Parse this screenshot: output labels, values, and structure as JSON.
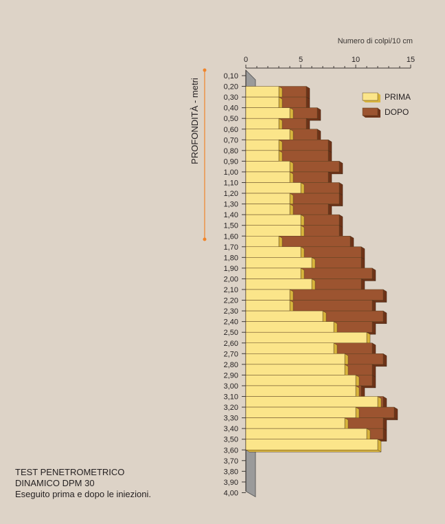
{
  "caption": {
    "line1": "TEST PENETROMETRICO",
    "line2": "DINAMICO DPM 30",
    "line3": "Eseguito prima e dopo le iniezioni."
  },
  "colors": {
    "background": "#ddd3c7",
    "prima_face": "#fbe58a",
    "prima_side": "#d8b43c",
    "dopo_face": "#9c5430",
    "dopo_side": "#6e3318",
    "axis_accent": "#f0842a",
    "probe": "#9a9a9a"
  },
  "chart_data": {
    "type": "bar",
    "orientation": "horizontal",
    "title": "",
    "xlabel": "Numero di colpi/10 cm",
    "ylabel": "PROFONDITÀ - metri",
    "xlim": [
      0,
      15
    ],
    "x_ticks": [
      "0",
      "5",
      "10",
      "15"
    ],
    "grid": false,
    "legend_position": "top-right",
    "depth_labels": [
      "0,10",
      "0,20",
      "0,30",
      "0,40",
      "0,50",
      "0,60",
      "0,70",
      "0,80",
      "0,90",
      "1,00",
      "1,10",
      "1,20",
      "1,30",
      "1,40",
      "1,50",
      "1,60",
      "1,70",
      "1,80",
      "1,90",
      "2,00",
      "2,10",
      "2,20",
      "2,30",
      "2,40",
      "2,50",
      "2,60",
      "2,70",
      "2,80",
      "2,90",
      "3,00",
      "3,10",
      "3,20",
      "3,30",
      "3,40",
      "3,50",
      "3,60",
      "3,70",
      "3,80",
      "3,90",
      "4,00"
    ],
    "categories": [
      "0,20",
      "0,30",
      "0,40",
      "0,50",
      "0,60",
      "0,70",
      "0,80",
      "0,90",
      "1,00",
      "1,10",
      "1,20",
      "1,30",
      "1,40",
      "1,50",
      "1,60",
      "1,70",
      "1,80",
      "1,90",
      "2,00",
      "2,10",
      "2,20",
      "2,30",
      "2,40",
      "2,50",
      "2,60",
      "2,70",
      "2,80",
      "2,90",
      "3,00",
      "3,10",
      "3,20",
      "3,30",
      "3,40",
      "3,50",
      "3,60"
    ],
    "series": [
      {
        "name": "PRIMA",
        "values": [
          3,
          3,
          4,
          3,
          4,
          3,
          3,
          4,
          4,
          5,
          4,
          4,
          5,
          5,
          3,
          5,
          6,
          5,
          6,
          4,
          4,
          7,
          8,
          11,
          8,
          9,
          9,
          10,
          10,
          12,
          10,
          9,
          11,
          12,
          0
        ]
      },
      {
        "name": "DOPO",
        "values": [
          5.5,
          5.5,
          6.5,
          5.5,
          6.5,
          7.5,
          7.5,
          8.5,
          7.5,
          8.5,
          8.5,
          7.5,
          8.5,
          8.5,
          9.5,
          10.5,
          10.5,
          11.5,
          10.5,
          12.5,
          11.5,
          12.5,
          11.5,
          11,
          11.5,
          12.5,
          11.5,
          11.5,
          10.5,
          12.5,
          13.5,
          12.5,
          12.5,
          11.5,
          0
        ]
      }
    ]
  }
}
